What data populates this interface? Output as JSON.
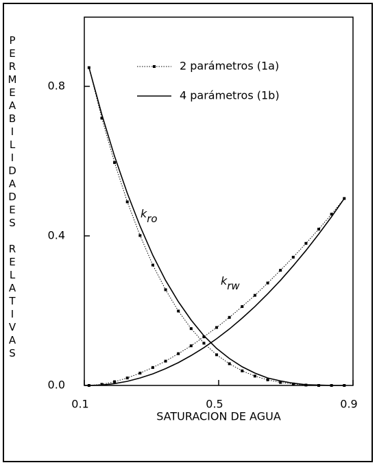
{
  "chart_data": {
    "type": "line",
    "xlabel": "SATURACION DE AGUA",
    "ylabel": "PERMEABILIDADES RELATIVAS",
    "x": [
      0.114,
      0.152,
      0.19,
      0.228,
      0.266,
      0.304,
      0.342,
      0.38,
      0.418,
      0.456,
      0.494,
      0.532,
      0.57,
      0.608,
      0.646,
      0.684,
      0.722,
      0.76,
      0.798,
      0.836,
      0.874
    ],
    "series": [
      {
        "name": "2 parámetros (1a)",
        "style": "dotted",
        "color": "#000000",
        "kro": [
          0.85,
          0.715,
          0.596,
          0.491,
          0.401,
          0.322,
          0.256,
          0.199,
          0.152,
          0.113,
          0.082,
          0.058,
          0.039,
          0.025,
          0.015,
          0.008,
          0.004,
          0.001,
          0,
          0,
          0
        ],
        "krw": [
          0,
          0.003,
          0.01,
          0.02,
          0.033,
          0.048,
          0.065,
          0.085,
          0.106,
          0.13,
          0.155,
          0.182,
          0.211,
          0.241,
          0.274,
          0.308,
          0.343,
          0.38,
          0.418,
          0.458,
          0.5
        ]
      },
      {
        "name": "4 parámetros (1b)",
        "style": "solid",
        "color": "#000000",
        "kro": [
          0.85,
          0.725,
          0.613,
          0.514,
          0.426,
          0.348,
          0.281,
          0.224,
          0.175,
          0.133,
          0.099,
          0.072,
          0.05,
          0.033,
          0.02,
          0.012,
          0.006,
          0.002,
          0.001,
          0,
          0
        ],
        "krw": [
          0,
          0.001,
          0.005,
          0.011,
          0.02,
          0.031,
          0.045,
          0.061,
          0.08,
          0.101,
          0.125,
          0.151,
          0.18,
          0.211,
          0.245,
          0.281,
          0.32,
          0.361,
          0.405,
          0.451,
          0.5
        ]
      }
    ],
    "annotations": [
      {
        "text": "k",
        "sub": "ro"
      },
      {
        "text": "k",
        "sub": "rw"
      }
    ],
    "xlim": [
      0.1,
      0.9
    ],
    "xticks": [
      0.1,
      0.5,
      0.9
    ],
    "ylim": [
      0,
      0.985
    ],
    "yticks": [
      {
        "value": 0,
        "label": "0.0"
      },
      0.4,
      0.8
    ],
    "legend": "upper right"
  }
}
